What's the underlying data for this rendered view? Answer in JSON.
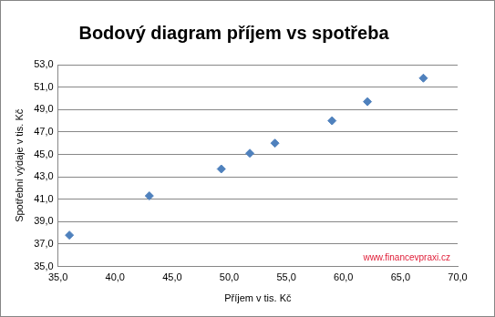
{
  "chart_data": {
    "type": "scatter",
    "title": "Bodový diagram příjem vs spotřeba",
    "x_label": "Příjem v tis. Kč",
    "y_label": "Spotřební výdaje v tis. Kč",
    "annotation": "www.financevpraxi.cz",
    "x": [
      36.0,
      43.0,
      49.3,
      51.8,
      54.0,
      59.0,
      62.1,
      67.0
    ],
    "values": [
      37.8,
      41.3,
      43.7,
      45.1,
      46.0,
      48.0,
      49.7,
      51.8
    ],
    "color": "#4f81bd",
    "marker": "diamond",
    "xlim": [
      35,
      70
    ],
    "xticks": [
      {
        "value": 35,
        "label": "35,0"
      },
      {
        "value": 40,
        "label": "40,0"
      },
      {
        "value": 45,
        "label": "45,0"
      },
      {
        "value": 50,
        "label": "50,0"
      },
      {
        "value": 55,
        "label": "55,0"
      },
      {
        "value": 60,
        "label": "60,0"
      },
      {
        "value": 65,
        "label": "65,0"
      },
      {
        "value": 70,
        "label": "70,0"
      }
    ],
    "ylim": [
      35,
      53
    ],
    "yticks": [
      {
        "value": 35,
        "label": "35,0"
      },
      {
        "value": 37,
        "label": "37,0"
      },
      {
        "value": 39,
        "label": "39,0"
      },
      {
        "value": 41,
        "label": "41,0"
      },
      {
        "value": 43,
        "label": "43,0"
      },
      {
        "value": 45,
        "label": "45,0"
      },
      {
        "value": 47,
        "label": "47,0"
      },
      {
        "value": 49,
        "label": "49,0"
      },
      {
        "value": 51,
        "label": "51,0"
      },
      {
        "value": 53,
        "label": "53,0"
      }
    ],
    "grid": "y"
  }
}
